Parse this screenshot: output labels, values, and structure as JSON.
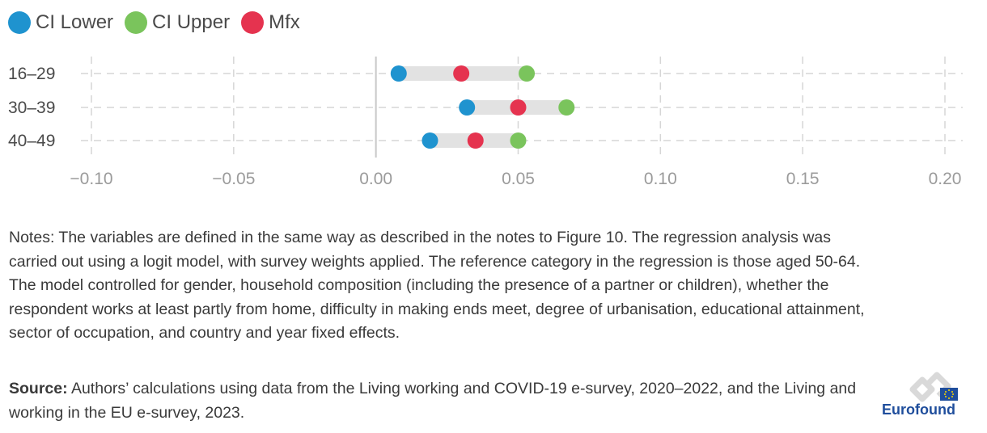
{
  "chart_data": {
    "type": "dumbbell",
    "legend": [
      {
        "name": "CI Lower",
        "color": "#1f93cf"
      },
      {
        "name": "CI Upper",
        "color": "#7ac45c"
      },
      {
        "name": "Mfx",
        "color": "#e5334f"
      }
    ],
    "legend_position": "top-left",
    "categories": [
      "16–29",
      "30–39",
      "40–49"
    ],
    "series": [
      {
        "name": "CI Lower",
        "values": [
          0.008,
          0.032,
          0.019
        ]
      },
      {
        "name": "CI Upper",
        "values": [
          0.053,
          0.067,
          0.05
        ]
      },
      {
        "name": "Mfx",
        "values": [
          0.03,
          0.05,
          0.035
        ]
      }
    ],
    "xlim": [
      -0.1,
      0.2
    ],
    "x_ticks": [
      "−0.10",
      "−0.05",
      "0.00",
      "0.05",
      "0.10",
      "0.15",
      "0.20"
    ],
    "x_tick_values": [
      -0.1,
      -0.05,
      0.0,
      0.05,
      0.1,
      0.15,
      0.2
    ],
    "grid": true
  },
  "notes": "Notes: The variables are defined in the same way as described in the notes to Figure 10. The regression analysis was carried out using a logit model, with survey weights applied. The reference category in the regression is those aged 50-64. The model controlled for gender, household composition (including the presence of a partner or children), whether the respondent works at least partly from home, difficulty in making ends meet, degree of urbanisation, educational attainment, sector of occupation, and country and year fixed effects.",
  "source_label": "Source:",
  "source_text": " Authors’ calculations using data from the Living working and COVID-19 e-survey, 2020–2022, and the Living and working in the EU e-survey, 2023.",
  "logo_text": "Eurofound"
}
